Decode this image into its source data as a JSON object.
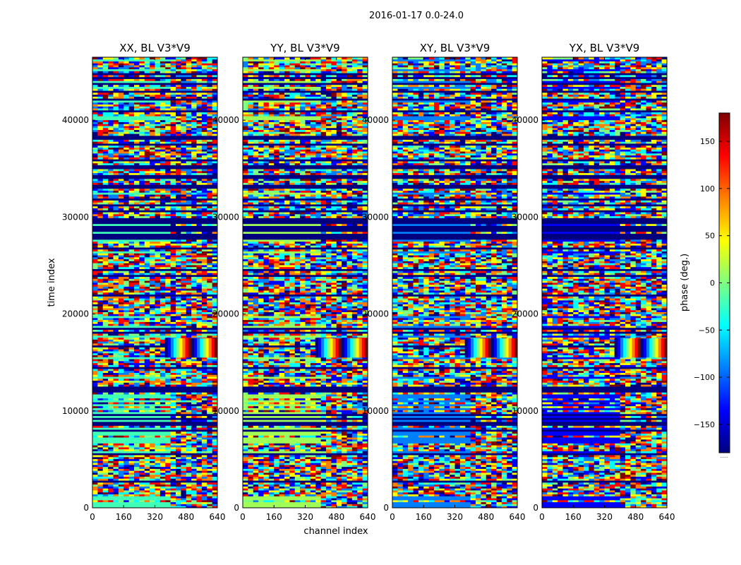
{
  "figure": {
    "suptitle": "2016-01-17 0.0-24.0",
    "ylabel": "time index",
    "xlabel": "channel index",
    "colorbar_label": "phase (deg.)",
    "colorbar_corner_mark": "......"
  },
  "chart_data": {
    "type": "heatmap",
    "colormap": "jet",
    "colormap_stops": [
      "#00007f",
      "#0000ff",
      "#007fff",
      "#00ffff",
      "#7fff7f",
      "#ffff00",
      "#ff7f00",
      "#ff0000",
      "#7f0000"
    ],
    "xlim": [
      0,
      640
    ],
    "ylim": [
      0,
      46500
    ],
    "xticks": [
      0,
      160,
      320,
      480,
      640
    ],
    "yticks": [
      0,
      10000,
      20000,
      30000,
      40000
    ],
    "colorbar": {
      "vmin": -180,
      "vmax": 180,
      "ticks": [
        -150,
        -100,
        -50,
        0,
        50,
        100,
        150
      ],
      "tick_labels": [
        "−150",
        "−100",
        "−50",
        "0",
        "50",
        "100",
        "150"
      ]
    },
    "panels": [
      {
        "title": "XX, BL V3*V9",
        "dominant_color_low": "#40ffb7",
        "dominant_color_flag": "#00007f",
        "fringe_band_time": [
          15500,
          17500
        ]
      },
      {
        "title": "YY, BL V3*V9",
        "dominant_color_low": "#a0ff56",
        "dominant_color_flag": "#00007f",
        "fringe_band_time": [
          15500,
          17500
        ]
      },
      {
        "title": "XY, BL V3*V9",
        "dominant_color_low": "#0080ff",
        "dominant_color_flag": "#00007f",
        "fringe_band_time": [
          15500,
          17500
        ]
      },
      {
        "title": "YX, BL V3*V9",
        "dominant_color_low": "#0000ff",
        "dominant_color_flag": "#00007f",
        "fringe_band_time": [
          15500,
          17500
        ]
      }
    ]
  }
}
